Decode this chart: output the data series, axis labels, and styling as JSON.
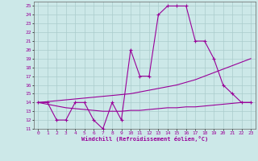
{
  "xlabel": "Windchill (Refroidissement éolien,°C)",
  "bg_color": "#cce8e8",
  "grid_color": "#aacccc",
  "line_color": "#990099",
  "xlim": [
    -0.5,
    23.5
  ],
  "ylim": [
    11,
    25.5
  ],
  "yticks": [
    11,
    12,
    13,
    14,
    15,
    16,
    17,
    18,
    19,
    20,
    21,
    22,
    23,
    24,
    25
  ],
  "xticks": [
    0,
    1,
    2,
    3,
    4,
    5,
    6,
    7,
    8,
    9,
    10,
    11,
    12,
    13,
    14,
    15,
    16,
    17,
    18,
    19,
    20,
    21,
    22,
    23
  ],
  "hours": [
    0,
    1,
    2,
    3,
    4,
    5,
    6,
    7,
    8,
    9,
    10,
    11,
    12,
    13,
    14,
    15,
    16,
    17,
    18,
    19,
    20,
    21,
    22,
    23
  ],
  "temp": [
    14,
    14,
    12,
    12,
    14,
    14,
    12,
    11,
    14,
    12,
    20,
    17,
    17,
    24,
    25,
    25,
    25,
    21,
    21,
    19,
    16,
    15,
    14,
    14
  ],
  "line1": [
    14.0,
    14.1,
    14.2,
    14.3,
    14.4,
    14.5,
    14.6,
    14.7,
    14.8,
    14.9,
    15.0,
    15.2,
    15.4,
    15.6,
    15.8,
    16.0,
    16.3,
    16.6,
    17.0,
    17.4,
    17.8,
    18.2,
    18.6,
    19.0
  ],
  "line2": [
    14.0,
    13.8,
    13.6,
    13.4,
    13.3,
    13.2,
    13.1,
    13.0,
    13.0,
    13.0,
    13.1,
    13.1,
    13.2,
    13.3,
    13.4,
    13.4,
    13.5,
    13.5,
    13.6,
    13.7,
    13.8,
    13.9,
    14.0,
    14.0
  ]
}
